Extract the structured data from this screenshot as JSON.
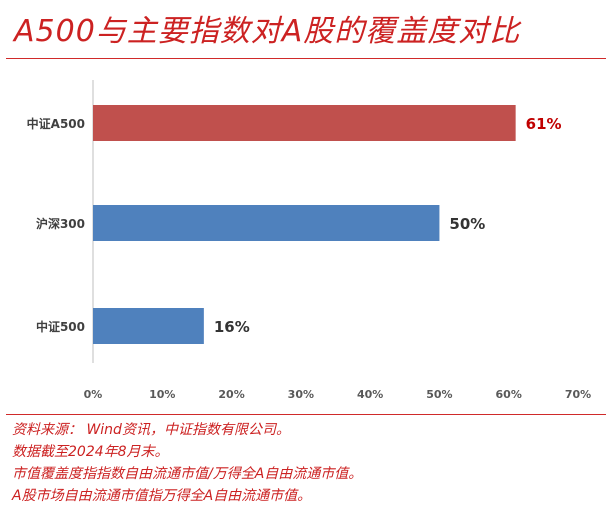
{
  "title": "A500与主要指数对A股的覆盖度对比",
  "colors": {
    "accent": "#cc2222",
    "bar_highlight": "#c0504d",
    "bar_default": "#4f81bd"
  },
  "chart_data": {
    "type": "bar",
    "orientation": "horizontal",
    "categories": [
      "中证A500",
      "沪深300",
      "中证500"
    ],
    "values": [
      61,
      50,
      16
    ],
    "value_labels": [
      "61%",
      "50%",
      "16%"
    ],
    "xlim": [
      0,
      70
    ],
    "xticks": [
      "0%",
      "10%",
      "20%",
      "30%",
      "40%",
      "50%",
      "60%",
      "70%"
    ],
    "grid": false,
    "highlight_category": "中证A500"
  },
  "notes": [
    "资料来源： Wind资讯，中证指数有限公司。",
    "数据截至2024年8月末。",
    "市值覆盖度指指数自由流通市值/万得全A自由流通市值。",
    "A股市场自由流通市值指万得全A自由流通市值。"
  ]
}
